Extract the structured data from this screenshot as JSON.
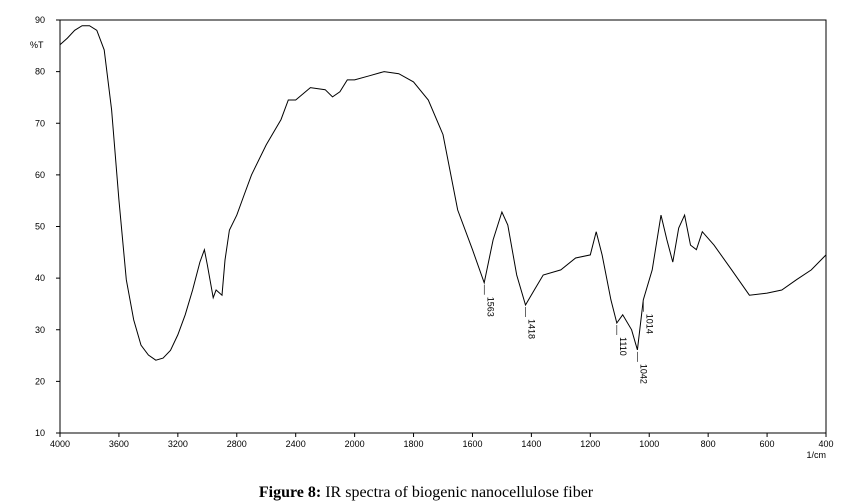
{
  "chart_data": {
    "type": "line",
    "ylabel": "%T",
    "xlabel": "1/cm",
    "caption_label": "Figure 8:",
    "caption_text": "IR spectra of biogenic nanocellulose fiber",
    "xlim": [
      4000,
      400
    ],
    "xbreak": 2000,
    "xbreak_factor": 2,
    "ylim": [
      10,
      90
    ],
    "xticks": [
      4000,
      3600,
      3200,
      2800,
      2400,
      2000,
      1800,
      1600,
      1400,
      1200,
      1000,
      800,
      600,
      400
    ],
    "yticks": [
      10,
      20,
      30,
      40,
      50,
      60,
      70,
      80,
      90
    ],
    "x": [
      4000,
      3950,
      3900,
      3850,
      3800,
      3750,
      3700,
      3650,
      3600,
      3550,
      3500,
      3450,
      3400,
      3350,
      3300,
      3250,
      3200,
      3150,
      3100,
      3050,
      3020,
      3000,
      2960,
      2940,
      2900,
      2880,
      2850,
      2800,
      2750,
      2700,
      2600,
      2500,
      2450,
      2400,
      2300,
      2200,
      2150,
      2100,
      2050,
      2000,
      1950,
      1900,
      1850,
      1800,
      1750,
      1700,
      1650,
      1600,
      1560,
      1530,
      1500,
      1480,
      1450,
      1420,
      1390,
      1360,
      1300,
      1250,
      1200,
      1180,
      1160,
      1130,
      1110,
      1090,
      1060,
      1040,
      1020,
      990,
      960,
      940,
      920,
      900,
      880,
      860,
      840,
      820,
      780,
      720,
      660,
      600,
      550,
      500,
      450,
      400
    ],
    "series": [
      {
        "name": "%T",
        "color": "#000000",
        "values": [
          85.2,
          86.5,
          88,
          88.9,
          88.9,
          88,
          84.2,
          72.6,
          55.2,
          39.7,
          31.9,
          27,
          25.1,
          24.1,
          24.5,
          26,
          29,
          32.9,
          37.7,
          43.1,
          45.5,
          42.6,
          36.2,
          37.7,
          36.7,
          43.5,
          49.3,
          52.2,
          56.1,
          60,
          65.8,
          70.7,
          74.5,
          74.5,
          76.9,
          76.5,
          75.1,
          76.1,
          78.4,
          78.4,
          79.2,
          80,
          79.6,
          78,
          74.5,
          67.8,
          53.2,
          45.5,
          39.1,
          47.4,
          52.8,
          50.3,
          40.6,
          34.8,
          37.7,
          40.6,
          41.6,
          43.9,
          44.5,
          49,
          44.5,
          35.8,
          31.3,
          32.9,
          30,
          26.1,
          35.8,
          41.6,
          52.2,
          47.4,
          43.1,
          49.7,
          52.2,
          46.4,
          45.5,
          49,
          46.4,
          41.6,
          36.7,
          37.1,
          37.7,
          39.7,
          41.6,
          44.5
        ]
      }
    ],
    "annotations": [
      {
        "label": "1563",
        "x": 1560,
        "y": 39.1
      },
      {
        "label": "1418",
        "x": 1420,
        "y": 34.8
      },
      {
        "label": "1110",
        "x": 1110,
        "y": 31.3
      },
      {
        "label": "1042",
        "x": 1040,
        "y": 26.1
      },
      {
        "label": "1014",
        "x": 1020,
        "y": 35.8
      }
    ]
  }
}
